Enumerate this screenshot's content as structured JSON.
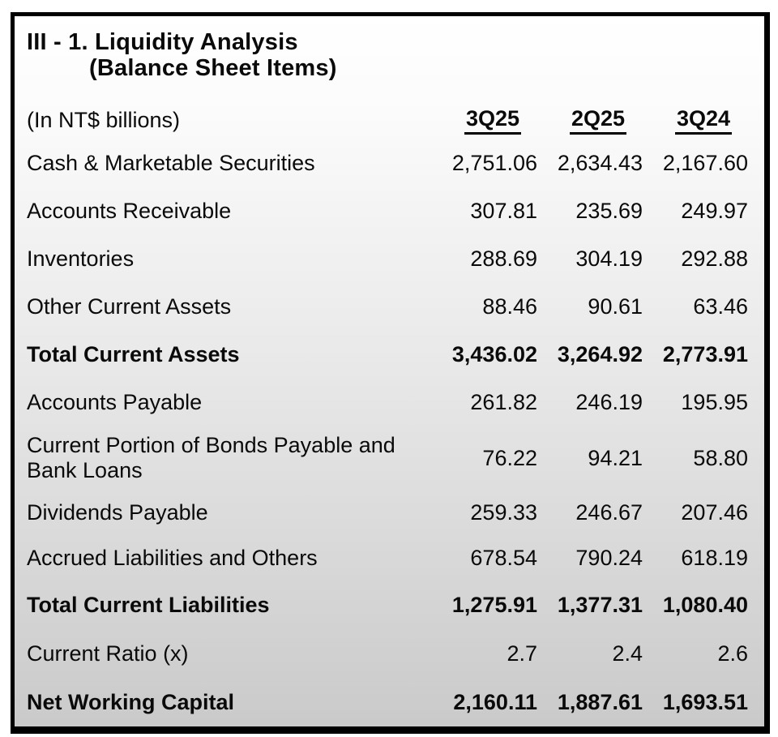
{
  "title": {
    "line1": "III - 1. Liquidity Analysis",
    "line2": "(Balance Sheet Items)"
  },
  "unit_label": "(In NT$ billions)",
  "columns": [
    "3Q25",
    "2Q25",
    "3Q24"
  ],
  "rows": [
    {
      "label": "Cash & Marketable Securities",
      "values": [
        "2,751.06",
        "2,634.43",
        "2,167.60"
      ],
      "bold": false
    },
    {
      "label": "Accounts Receivable",
      "values": [
        "307.81",
        "235.69",
        "249.97"
      ],
      "bold": false
    },
    {
      "label": "Inventories",
      "values": [
        "288.69",
        "304.19",
        "292.88"
      ],
      "bold": false
    },
    {
      "label": "Other Current Assets",
      "values": [
        "88.46",
        "90.61",
        "63.46"
      ],
      "bold": false
    },
    {
      "label": "Total Current Assets",
      "values": [
        "3,436.02",
        "3,264.92",
        "2,773.91"
      ],
      "bold": true
    },
    {
      "label": "Accounts Payable",
      "values": [
        "261.82",
        "246.19",
        "195.95"
      ],
      "bold": false
    },
    {
      "label": "Current Portion of Bonds Payable and Bank Loans",
      "values": [
        "76.22",
        "94.21",
        "58.80"
      ],
      "bold": false
    },
    {
      "label": "Dividends Payable",
      "values": [
        "259.33",
        "246.67",
        "207.46"
      ],
      "bold": false
    },
    {
      "label": "Accrued Liabilities and Others",
      "values": [
        "678.54",
        "790.24",
        "618.19"
      ],
      "bold": false
    },
    {
      "label": "Total Current Liabilities",
      "values": [
        "1,275.91",
        "1,377.31",
        "1,080.40"
      ],
      "bold": true
    },
    {
      "label": "Current Ratio (x)",
      "values": [
        "2.7",
        "2.4",
        "2.6"
      ],
      "bold": false
    },
    {
      "label": "Net Working Capital",
      "values": [
        "2,160.11",
        "1,887.61",
        "1,693.51"
      ],
      "bold": true
    }
  ],
  "colors": {
    "frame_border": "#000000",
    "background_top": "#ffffff",
    "background_bottom": "#cacaca",
    "text": "#0a0a0a"
  }
}
